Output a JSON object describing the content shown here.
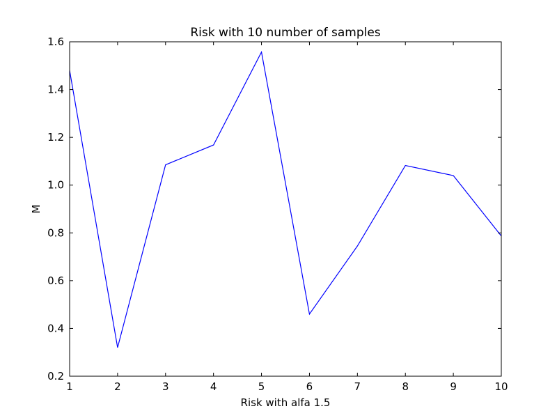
{
  "chart_data": {
    "type": "line",
    "title": "Risk with 10 number of samples",
    "xlabel": "Risk with alfa 1.5",
    "ylabel": "M",
    "xlim": [
      1,
      10
    ],
    "ylim": [
      0.2,
      1.6
    ],
    "x_ticks": [
      "1",
      "2",
      "3",
      "4",
      "5",
      "6",
      "7",
      "8",
      "9",
      "10"
    ],
    "y_ticks": [
      "0.2",
      "0.4",
      "0.6",
      "0.8",
      "1.0",
      "1.2",
      "1.4",
      "1.6"
    ],
    "grid": false,
    "series": [
      {
        "color": "#0000ff",
        "x": [
          1,
          2,
          3,
          4,
          5,
          6,
          7,
          8,
          9,
          10
        ],
        "y": [
          1.48,
          0.32,
          1.085,
          1.168,
          1.557,
          0.46,
          0.745,
          1.082,
          1.04,
          0.787
        ]
      }
    ]
  }
}
